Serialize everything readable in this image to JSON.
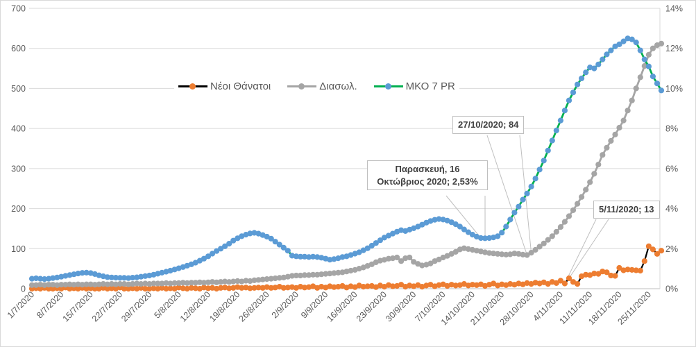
{
  "chart_data": {
    "type": "line",
    "x": {
      "start": "1/7/2020",
      "end": "28/11/2020",
      "frequency": "daily",
      "tick_labels": [
        "1/7/2020",
        "8/7/2020",
        "15/7/2020",
        "22/7/2020",
        "29/7/2020",
        "5/8/2020",
        "12/8/2020",
        "19/8/2020",
        "26/8/2020",
        "2/9/2020",
        "9/9/2020",
        "16/9/2020",
        "23/9/2020",
        "30/9/2020",
        "7/10/2020",
        "14/10/2020",
        "21/10/2020",
        "28/10/2020",
        "4/11/2020",
        "11/11/2020",
        "18/11/2020",
        "25/11/2020"
      ]
    },
    "axes": {
      "left": {
        "min": 0,
        "max": 700,
        "step": 100,
        "tick_labels": [
          "0",
          "100",
          "200",
          "300",
          "400",
          "500",
          "600",
          "700"
        ]
      },
      "right": {
        "min": 0,
        "max": 14,
        "step": 2,
        "tick_labels": [
          "0%",
          "2%",
          "4%",
          "6%",
          "8%",
          "10%",
          "12%",
          "14%"
        ]
      }
    },
    "grid": {
      "horizontal": true,
      "color": "#d9d9d9"
    },
    "legend": {
      "position": "top-center-inside",
      "items": [
        "Νέοι Θάνατοι",
        "Διασωλ.",
        "ΜΚΟ 7 PR"
      ]
    },
    "series": [
      {
        "name": "Νέοι Θάνατοι",
        "axis": "left",
        "line_color": "#000000",
        "marker_color": "#ED7D31",
        "line_width": 2.2,
        "values": [
          0,
          1,
          0,
          2,
          0,
          0,
          1,
          0,
          3,
          0,
          1,
          0,
          2,
          0,
          1,
          0,
          0,
          2,
          0,
          1,
          0,
          3,
          0,
          0,
          1,
          0,
          2,
          0,
          0,
          1,
          0,
          2,
          0,
          1,
          0,
          3,
          1,
          0,
          2,
          1,
          0,
          3,
          1,
          2,
          0,
          2,
          3,
          1,
          2,
          4,
          2,
          3,
          1,
          2,
          3,
          2,
          4,
          2,
          3,
          5,
          2,
          3,
          4,
          2,
          5,
          3,
          4,
          6,
          2,
          5,
          3,
          6,
          4,
          5,
          7,
          3,
          6,
          4,
          8,
          5,
          6,
          7,
          4,
          8,
          5,
          9,
          6,
          7,
          10,
          5,
          8,
          6,
          9,
          5,
          8,
          10,
          6,
          9,
          11,
          7,
          10,
          8,
          9,
          12,
          8,
          10,
          9,
          11,
          7,
          10,
          13,
          8,
          11,
          9,
          12,
          10,
          13,
          11,
          14,
          12,
          15,
          13,
          16,
          12,
          17,
          14,
          20,
          13,
          26,
          17,
          12,
          31,
          35,
          34,
          38,
          37,
          43,
          41,
          33,
          32,
          52,
          46,
          48,
          47,
          46,
          45,
          69,
          106,
          98,
          87,
          95
        ]
      },
      {
        "name": "Διασωλ.",
        "axis": "left",
        "line_color": "#A5A5A5",
        "marker_color": "#A5A5A5",
        "line_width": 2.8,
        "values": [
          9,
          9,
          10,
          9,
          10,
          10,
          9,
          10,
          10,
          11,
          10,
          11,
          10,
          11,
          11,
          10,
          11,
          12,
          11,
          12,
          11,
          12,
          12,
          11,
          12,
          13,
          12,
          13,
          12,
          13,
          13,
          13,
          14,
          13,
          14,
          14,
          15,
          14,
          15,
          15,
          16,
          15,
          16,
          17,
          16,
          17,
          18,
          17,
          18,
          19,
          18,
          20,
          19,
          21,
          22,
          23,
          24,
          25,
          26,
          27,
          28,
          30,
          32,
          33,
          33,
          34,
          34,
          35,
          35,
          36,
          37,
          38,
          39,
          40,
          41,
          43,
          45,
          47,
          50,
          53,
          57,
          61,
          66,
          70,
          72,
          75,
          76,
          78,
          69,
          76,
          78,
          67,
          62,
          58,
          60,
          63,
          69,
          73,
          78,
          82,
          87,
          92,
          98,
          101,
          99,
          97,
          95,
          93,
          91,
          89,
          88,
          87,
          86,
          85,
          86,
          88,
          87,
          85,
          84,
          90,
          97,
          105,
          113,
          122,
          131,
          142,
          154,
          167,
          181,
          196,
          212,
          229,
          247,
          266,
          287,
          310,
          334,
          352,
          369,
          385,
          402,
          420,
          445,
          470,
          500,
          528,
          556,
          584,
          600,
          608,
          612
        ]
      },
      {
        "name": "ΜΚΟ 7 PR",
        "axis": "right",
        "line_color": "#00B050",
        "marker_color": "#5B9BD5",
        "line_width": 2.8,
        "values": [
          0.5,
          0.52,
          0.5,
          0.48,
          0.5,
          0.53,
          0.56,
          0.6,
          0.64,
          0.68,
          0.72,
          0.76,
          0.79,
          0.8,
          0.78,
          0.73,
          0.67,
          0.62,
          0.58,
          0.56,
          0.55,
          0.54,
          0.54,
          0.53,
          0.55,
          0.57,
          0.6,
          0.63,
          0.66,
          0.7,
          0.75,
          0.8,
          0.85,
          0.9,
          0.96,
          1.02,
          1.08,
          1.15,
          1.22,
          1.3,
          1.4,
          1.5,
          1.62,
          1.75,
          1.88,
          2.0,
          2.12,
          2.25,
          2.4,
          2.52,
          2.62,
          2.7,
          2.76,
          2.79,
          2.75,
          2.68,
          2.6,
          2.5,
          2.35,
          2.2,
          2.05,
          1.9,
          1.65,
          1.62,
          1.6,
          1.6,
          1.58,
          1.6,
          1.58,
          1.55,
          1.5,
          1.45,
          1.48,
          1.52,
          1.58,
          1.62,
          1.68,
          1.75,
          1.82,
          1.92,
          2.02,
          2.15,
          2.28,
          2.42,
          2.55,
          2.65,
          2.75,
          2.85,
          2.92,
          2.88,
          2.95,
          3.02,
          3.1,
          3.2,
          3.3,
          3.38,
          3.44,
          3.48,
          3.45,
          3.4,
          3.32,
          3.22,
          3.1,
          2.96,
          2.82,
          2.7,
          2.6,
          2.53,
          2.52,
          2.53,
          2.56,
          2.62,
          2.8,
          3.1,
          3.45,
          3.8,
          4.1,
          4.45,
          4.75,
          5.1,
          5.5,
          5.95,
          6.4,
          6.9,
          7.4,
          7.9,
          8.4,
          8.9,
          9.4,
          9.8,
          10.2,
          10.5,
          10.8,
          11.05,
          11.0,
          11.2,
          11.45,
          11.7,
          11.9,
          12.1,
          12.2,
          12.35,
          12.5,
          12.45,
          12.3,
          11.9,
          11.45,
          11.1,
          10.6,
          10.25,
          9.9
        ]
      }
    ],
    "annotations": [
      {
        "id": "friday",
        "text": "Παρασκευή, 16 Οκτώβριος 2020;  2,53%",
        "anchor": {
          "series": "ΜΚΟ 7 PR",
          "date": "16/10/2020",
          "value": "2,53%",
          "day_index": 107,
          "y_value": 2.53,
          "axis": "right"
        }
      },
      {
        "id": "a27",
        "text": "27/10/2020; 84",
        "anchor": {
          "series": "Διασωλ.",
          "date": "27/10/2020",
          "value": 84,
          "day_index": 118,
          "y_value": 84,
          "axis": "left"
        }
      },
      {
        "id": "a5",
        "text": "5/11/2020; 13",
        "anchor": {
          "series": "Νέοι Θάνατοι",
          "date": "5/11/2020",
          "value": 13,
          "day_index": 127,
          "y_value": 13,
          "axis": "left"
        }
      }
    ],
    "text_color": "#595959",
    "annotation_text_color": "#404040"
  }
}
